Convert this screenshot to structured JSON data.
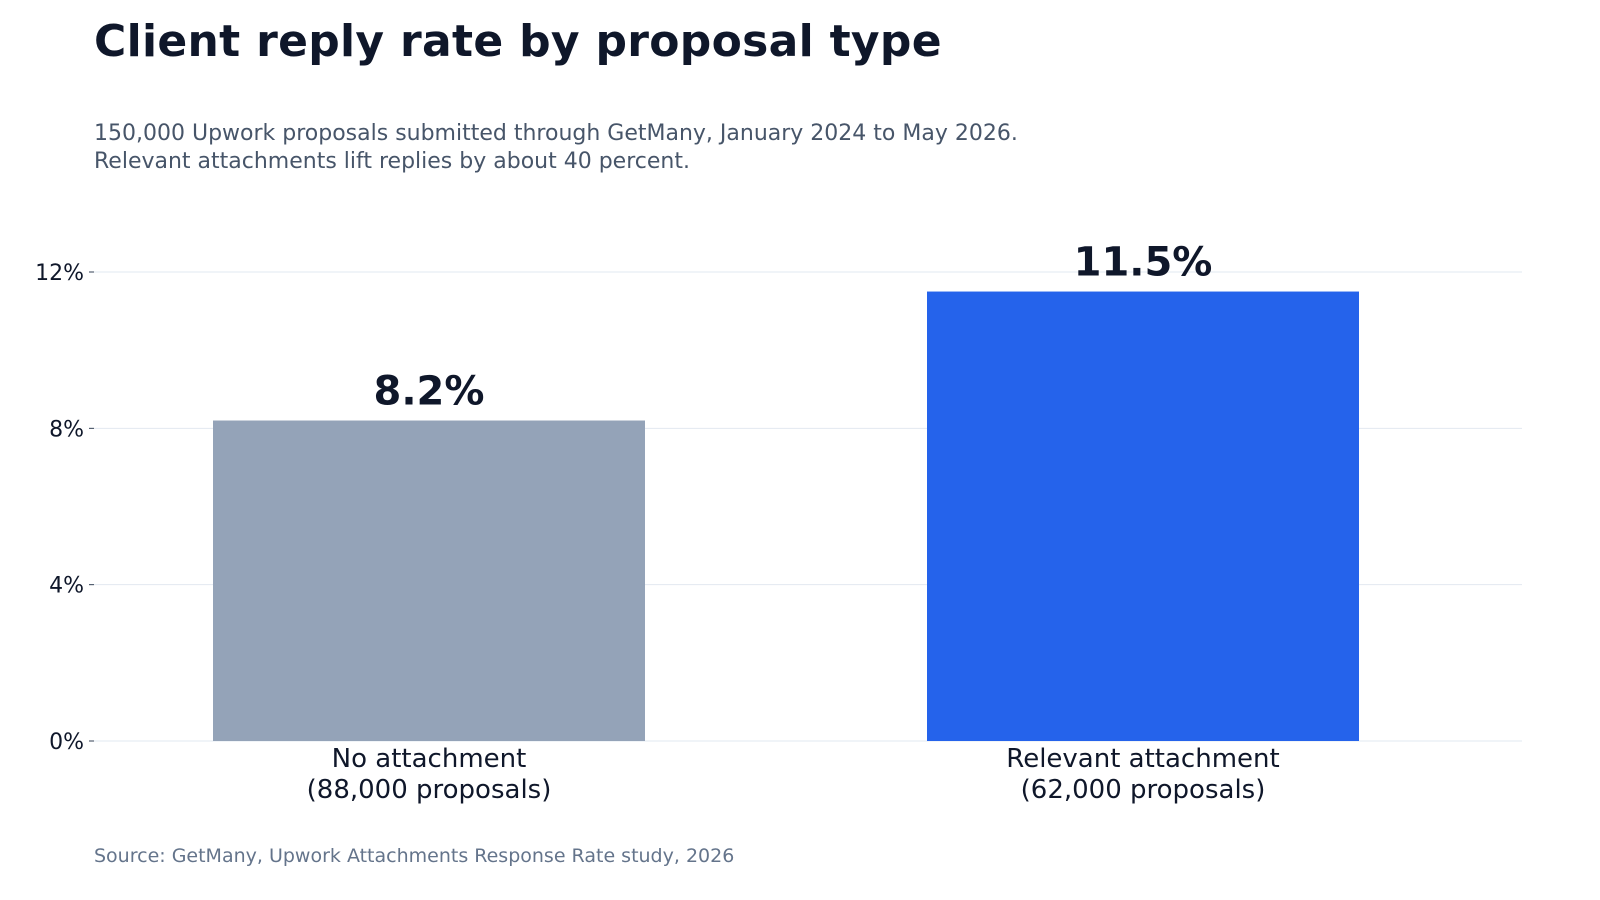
{
  "header": {
    "title": "Client reply rate by proposal type",
    "subtitle_line1": "150,000 Upwork proposals submitted through GetMany, January 2024 to May 2026.",
    "subtitle_line2": "Relevant attachments lift replies by about 40 percent."
  },
  "footer": {
    "source": "Source: GetMany, Upwork Attachments Response Rate study, 2026"
  },
  "chart_data": {
    "type": "bar",
    "categories": [
      [
        "No attachment",
        "(88,000 proposals)"
      ],
      [
        "Relevant attachment",
        "(62,000 proposals)"
      ]
    ],
    "values": [
      8.2,
      11.5
    ],
    "value_labels": [
      "8.2%",
      "11.5%"
    ],
    "colors": [
      "#94a3b8",
      "#2563eb"
    ],
    "ylim": [
      0,
      12
    ],
    "yticks": [
      0,
      4,
      8,
      12
    ],
    "ytick_labels": [
      "0%",
      "4%",
      "8%",
      "12%"
    ],
    "grid": true,
    "title": "",
    "xlabel": "",
    "ylabel": ""
  }
}
